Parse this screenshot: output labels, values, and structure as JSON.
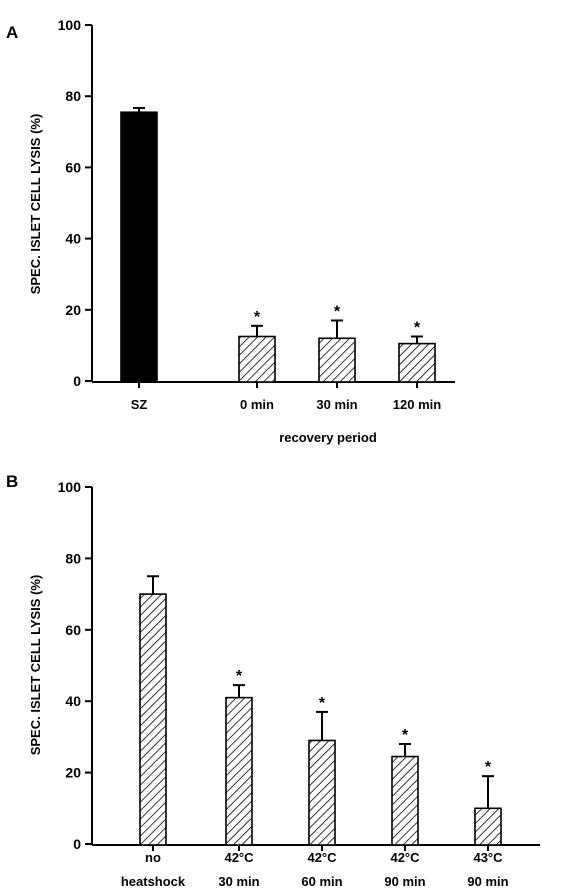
{
  "colors": {
    "ink": "#000000",
    "paper": "#ffffff"
  },
  "chart_data": [
    {
      "panel_label": "A",
      "type": "bar",
      "ylabel": "SPEC. ISLET CELL LYSIS (%)",
      "xlabel": "recovery period",
      "ylim": [
        0,
        100
      ],
      "yticks": [
        "0",
        "20",
        "40",
        "60",
        "80",
        "100"
      ],
      "categories": [
        "SZ",
        "0 min",
        "30 min",
        "120 min"
      ],
      "values": [
        75.5,
        12.5,
        12,
        10.5
      ],
      "errors": [
        1.2,
        3,
        5,
        2
      ],
      "fill": [
        "solid",
        "hatched",
        "hatched",
        "hatched"
      ],
      "significance": [
        "",
        "*",
        "*",
        "*"
      ]
    },
    {
      "panel_label": "B",
      "type": "bar",
      "ylabel": "SPEC. ISLET CELL LYSIS (%)",
      "xlabel": "",
      "ylim": [
        0,
        100
      ],
      "yticks": [
        "0",
        "20",
        "40",
        "60",
        "80",
        "100"
      ],
      "categories": [
        [
          "no",
          "heatshock"
        ],
        [
          "42°C",
          "30 min"
        ],
        [
          "42°C",
          "60 min"
        ],
        [
          "42°C",
          "90 min"
        ],
        [
          "43°C",
          "90 min"
        ]
      ],
      "values": [
        70,
        41,
        29,
        24.5,
        10
      ],
      "errors": [
        5,
        3.5,
        8,
        3.5,
        9
      ],
      "fill": [
        "hatched",
        "hatched",
        "hatched",
        "hatched",
        "hatched"
      ],
      "significance": [
        "",
        "*",
        "*",
        "*",
        "*"
      ]
    }
  ]
}
